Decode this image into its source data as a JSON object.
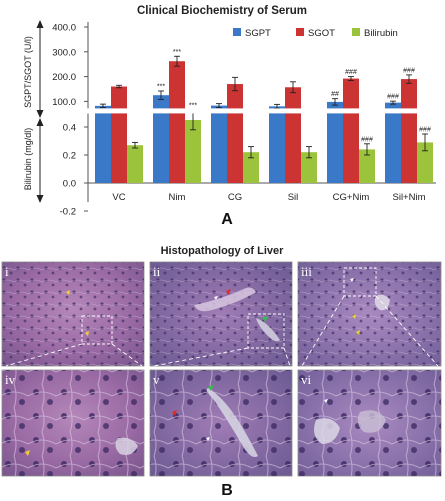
{
  "figure": {
    "panel_a_letter": "A",
    "panel_b_letter": "B",
    "histology_title": "Histopathology of Liver",
    "micro_labels": [
      "i",
      "ii",
      "iii",
      "iv",
      "v",
      "vi"
    ]
  },
  "colors": {
    "SGPT": "#3a78c8",
    "SGOT": "#cc3333",
    "Bilirubin": "#9bc43c"
  },
  "chart_data": {
    "type": "bar",
    "title": "Clinical Biochemistry of Serum",
    "categories": [
      "VC",
      "Nim",
      "CG",
      "Sil",
      "CG+Nim",
      "Sil+Nim"
    ],
    "upper_axis": {
      "label": "SGPT/SGOT (U/l)",
      "ticks": [
        "400.0",
        "300.0",
        "200.0",
        "100.0"
      ],
      "tick_values": [
        400,
        300,
        200,
        100
      ],
      "display_mapping": {
        "value": [
          100,
          200,
          300,
          400
        ],
        "scaled": [
          0,
          1,
          2,
          3
        ]
      }
    },
    "lower_axis": {
      "label": "Bilirubin (mg/dl)",
      "ticks": [
        "0.4",
        "0.2",
        "0.0",
        "-0.2"
      ],
      "tick_values": [
        0.4,
        0.2,
        0.0,
        -0.2
      ],
      "ylim": [
        -0.2,
        0.55
      ]
    },
    "series": [
      {
        "name": "SGPT",
        "axis": "upper",
        "values": [
          82,
          125,
          83,
          80,
          98,
          95
        ],
        "errors": [
          7,
          17,
          8,
          8,
          13,
          6
        ],
        "annotations": [
          "",
          "***",
          "",
          "",
          "##",
          "###"
        ]
      },
      {
        "name": "SGOT",
        "axis": "upper",
        "values": [
          160,
          262,
          170,
          157,
          192,
          190
        ],
        "errors": [
          5,
          20,
          27,
          22,
          8,
          17
        ],
        "annotations": [
          "",
          "***",
          "",
          "",
          "###",
          "###"
        ]
      },
      {
        "name": "Bilirubin",
        "axis": "lower",
        "values": [
          0.27,
          0.45,
          0.22,
          0.22,
          0.24,
          0.29
        ],
        "errors": [
          0.02,
          0.07,
          0.04,
          0.04,
          0.04,
          0.06
        ],
        "annotations": [
          "",
          "***",
          "",
          "",
          "###",
          "###"
        ]
      }
    ]
  }
}
